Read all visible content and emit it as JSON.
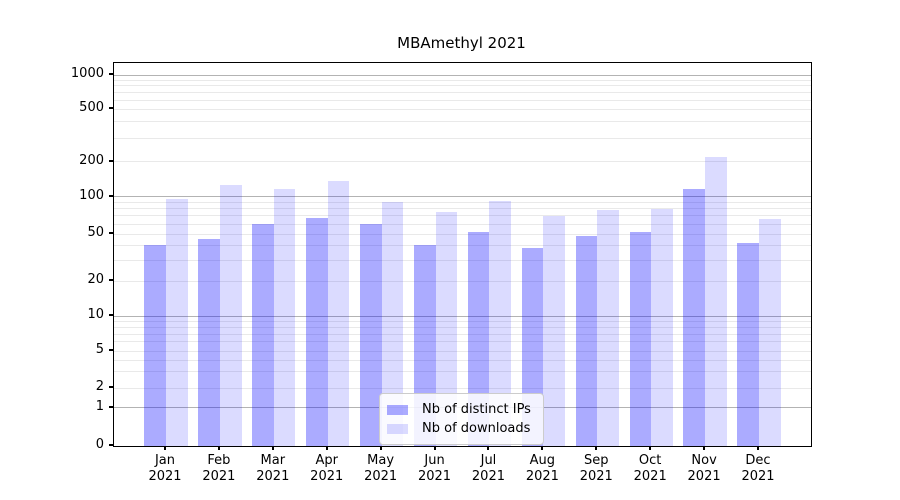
{
  "title": "MBAmethyl 2021",
  "chart_data": {
    "type": "bar",
    "title": "MBAmethyl 2021",
    "categories": [
      "Jan 2021",
      "Feb 2021",
      "Mar 2021",
      "Apr 2021",
      "May 2021",
      "Jun 2021",
      "Jul 2021",
      "Aug 2021",
      "Sep 2021",
      "Oct 2021",
      "Nov 2021",
      "Dec 2021"
    ],
    "series": [
      {
        "name": "Nb of distinct IPs",
        "color": "rgba(0,0,255,0.33)",
        "values": [
          40,
          45,
          60,
          67,
          60,
          40,
          52,
          38,
          48,
          52,
          117,
          42
        ]
      },
      {
        "name": "Nb of downloads",
        "color": "rgba(0,0,255,0.14)",
        "values": [
          96,
          125,
          115,
          136,
          90,
          75,
          92,
          70,
          78,
          79,
          215,
          66
        ]
      }
    ],
    "xlabel": "",
    "ylabel": "",
    "yticks": [
      0,
      1,
      2,
      5,
      10,
      20,
      50,
      100,
      200,
      500,
      1000
    ],
    "yscale": "log-like (linear below 1)",
    "ylim": [
      0,
      1000
    ],
    "grid": true,
    "legend_position": "bottom-center",
    "colors": {
      "bar_dark": "rgba(0,0,255,0.33)",
      "bar_light": "rgba(0,0,255,0.14)",
      "grid_major": "#b3b3b3",
      "grid_minor": "#e9e9e9"
    }
  }
}
